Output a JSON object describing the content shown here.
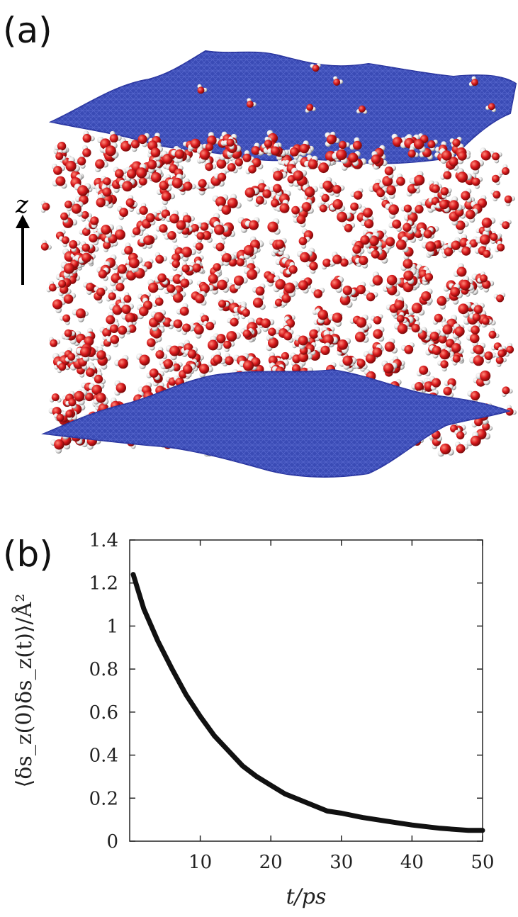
{
  "panels": {
    "a_label": "(a)",
    "b_label": "(b)"
  },
  "simulation": {
    "axis_arrow_label": "z",
    "colors": {
      "surface": "#3a4bb5",
      "oxygen": "#d8191c",
      "hydrogen": "#e6e6e6"
    }
  },
  "chart_data": {
    "type": "line",
    "title": "",
    "xlabel": "t/ps",
    "ylabel": "⟨δs_z(0)δs_z(t)⟩/Å²",
    "xlim": [
      0,
      50
    ],
    "ylim": [
      0,
      1.4
    ],
    "xticks": [
      10,
      20,
      30,
      40,
      50
    ],
    "yticks": [
      0,
      0.2,
      0.4,
      0.6,
      0.8,
      1,
      1.2,
      1.4
    ],
    "xtick_labels": [
      "10",
      "20",
      "30",
      "40",
      "50"
    ],
    "ytick_labels": [
      "0",
      "0.2",
      "0.4",
      "0.6",
      "0.8",
      "1",
      "1.2",
      "1.4"
    ],
    "grid": false,
    "series": [
      {
        "color": "#111111",
        "x": [
          0.5,
          2,
          4,
          6,
          8,
          10,
          12,
          14,
          16,
          18,
          20,
          22,
          25,
          28,
          30,
          33,
          36,
          40,
          44,
          48,
          50
        ],
        "y": [
          1.24,
          1.08,
          0.93,
          0.8,
          0.68,
          0.58,
          0.49,
          0.42,
          0.35,
          0.3,
          0.26,
          0.22,
          0.18,
          0.14,
          0.13,
          0.11,
          0.095,
          0.075,
          0.06,
          0.05,
          0.05
        ]
      }
    ]
  }
}
